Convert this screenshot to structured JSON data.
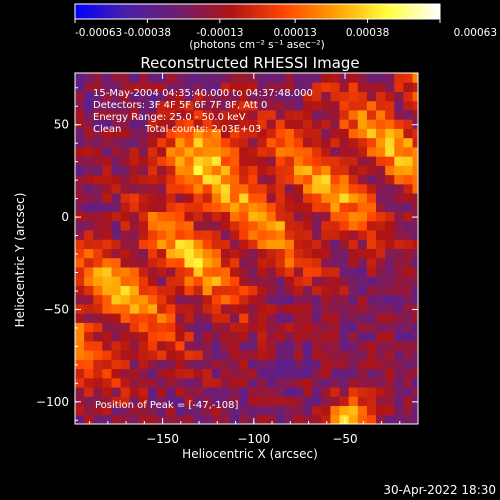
{
  "chart_data": {
    "type": "heatmap",
    "title": "Reconstructed RHESSI Image",
    "xlabel": "Heliocentric X (arcsec)",
    "ylabel": "Heliocentric Y (arcsec)",
    "xlim": [
      -198,
      -10
    ],
    "ylim": [
      -112,
      78
    ],
    "xticks": [
      -150,
      -100,
      -50
    ],
    "yticks": [
      50,
      0,
      -50,
      -100
    ],
    "colorbar": {
      "range": [
        -0.00063,
        0.00063
      ],
      "ticks": [
        -0.00063,
        -0.00038,
        -0.00013,
        0.00013,
        0.00038,
        0.00063
      ],
      "tick_labels": [
        "-0.00063",
        "-0.00038",
        "-0.00013",
        "0.00013",
        "0.00038",
        "0.00063"
      ],
      "units": "(photons cm⁻² s⁻¹ asec⁻²)",
      "colors": [
        "#0000ff",
        "#4b1fa8",
        "#701e6e",
        "#b01414",
        "#ff4500",
        "#ffa000",
        "#ffff40",
        "#ffffff"
      ]
    },
    "annotations": {
      "time": "15-May-2004 04:35:40.000 to 04:37:48.000",
      "detectors": "Detectors: 3F 4F 5F 6F 7F 8F, Att 0",
      "energy": "Energy Range: 25.0 - 50.0 keV",
      "method": "Clean",
      "counts": "Total counts: 2.03E+03",
      "peak": "Position of Peak = [-47,-108]"
    },
    "peak_position": [
      -47,
      -108
    ],
    "grid": false,
    "legend": "none"
  },
  "footer": {
    "date": "30-Apr-2022 18:30"
  }
}
